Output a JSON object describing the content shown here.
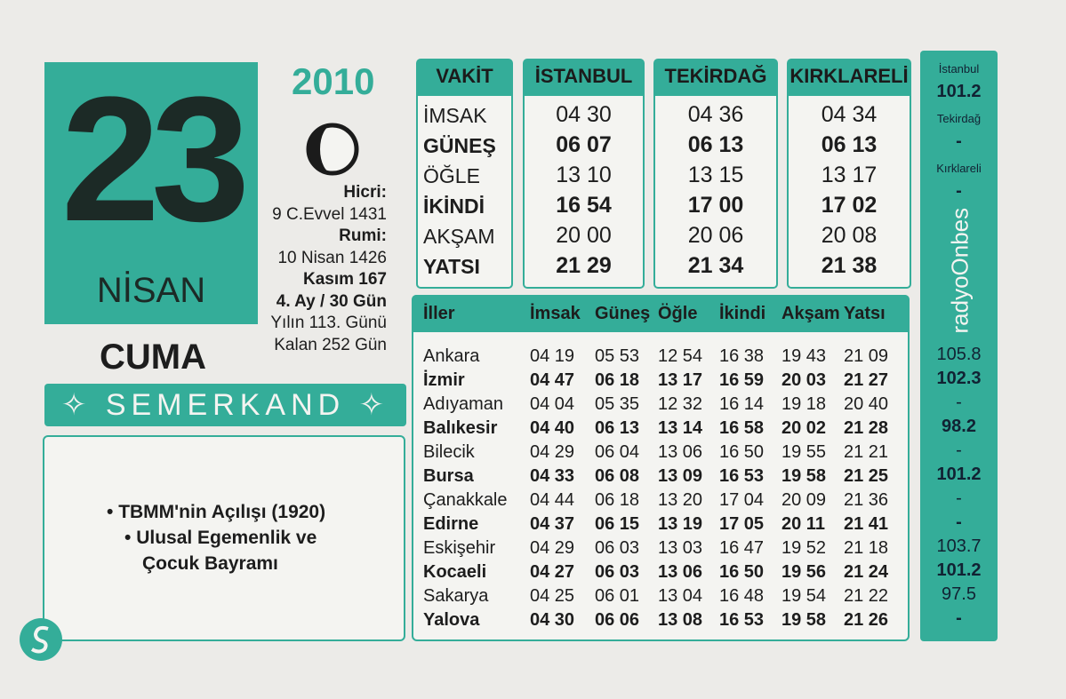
{
  "date": {
    "year": "2010",
    "day": "23",
    "month": "NİSAN",
    "weekday": "CUMA"
  },
  "info": [
    "Hicri:",
    "9 C.Evvel 1431",
    "Rumi:",
    "10 Nisan 1426",
    "Kasım 167",
    "4. Ay / 30 Gün",
    "Yılın 113. Günü",
    "Kalan 252 Gün"
  ],
  "brand": "SEMERKAND",
  "notes": [
    "TBMM'nin Açılışı (1920)",
    "Ulusal Egemenlik ve",
    "Çocuk Bayramı"
  ],
  "vakit_table": {
    "header": [
      "VAKİT",
      "İSTANBUL",
      "TEKİRDAĞ",
      "KIRKLARELİ"
    ],
    "rows": [
      [
        "İMSAK",
        "04 30",
        "04 36",
        "04 34"
      ],
      [
        "GÜNEŞ",
        "06 07",
        "06 13",
        "06 13"
      ],
      [
        "ÖĞLE",
        "13 10",
        "13 15",
        "13 17"
      ],
      [
        "İKİNDİ",
        "16 54",
        "17 00",
        "17 02"
      ],
      [
        "AKŞAM",
        "20 00",
        "20 06",
        "20 08"
      ],
      [
        "YATSI",
        "21 29",
        "21 34",
        "21 38"
      ]
    ]
  },
  "city_table": {
    "header": [
      "İller",
      "İmsak",
      "Güneş",
      "Öğle",
      "İkindi",
      "Akşam",
      "Yatsı"
    ],
    "rows": [
      [
        "Ankara",
        "04 19",
        "05 53",
        "12 54",
        "16 38",
        "19 43",
        "21 09"
      ],
      [
        "İzmir",
        "04 47",
        "06 18",
        "13 17",
        "16 59",
        "20 03",
        "21 27"
      ],
      [
        "Adıyaman",
        "04 04",
        "05 35",
        "12 32",
        "16 14",
        "19 18",
        "20 40"
      ],
      [
        "Balıkesir",
        "04 40",
        "06 13",
        "13 14",
        "16 58",
        "20 02",
        "21 28"
      ],
      [
        "Bilecik",
        "04 29",
        "06 04",
        "13 06",
        "16 50",
        "19 55",
        "21 21"
      ],
      [
        "Bursa",
        "04 33",
        "06 08",
        "13 09",
        "16 53",
        "19 58",
        "21 25"
      ],
      [
        "Çanakkale",
        "04 44",
        "06 18",
        "13 20",
        "17 04",
        "20 09",
        "21 36"
      ],
      [
        "Edirne",
        "04 37",
        "06 15",
        "13 19",
        "17 05",
        "20 11",
        "21 41"
      ],
      [
        "Eskişehir",
        "04 29",
        "06 03",
        "13 03",
        "16 47",
        "19 52",
        "21 18"
      ],
      [
        "Kocaeli",
        "04 27",
        "06 03",
        "13 06",
        "16 50",
        "19 56",
        "21 24"
      ],
      [
        "Sakarya",
        "04 25",
        "06 01",
        "13 04",
        "16 48",
        "19 54",
        "21 22"
      ],
      [
        "Yalova",
        "04 30",
        "06 06",
        "13 08",
        "16 53",
        "19 58",
        "21 26"
      ]
    ]
  },
  "radio": {
    "top": [
      [
        "İstanbul",
        "101.2"
      ],
      [
        "Tekirdağ",
        "-"
      ],
      [
        "Kırklareli",
        "-"
      ]
    ],
    "logo": "radyoOnbes",
    "frequencies": [
      "105.8",
      "102.3",
      "-",
      "98.2",
      "-",
      "101.2",
      "-",
      "-",
      "103.7",
      "101.2",
      "97.5",
      "-"
    ]
  }
}
